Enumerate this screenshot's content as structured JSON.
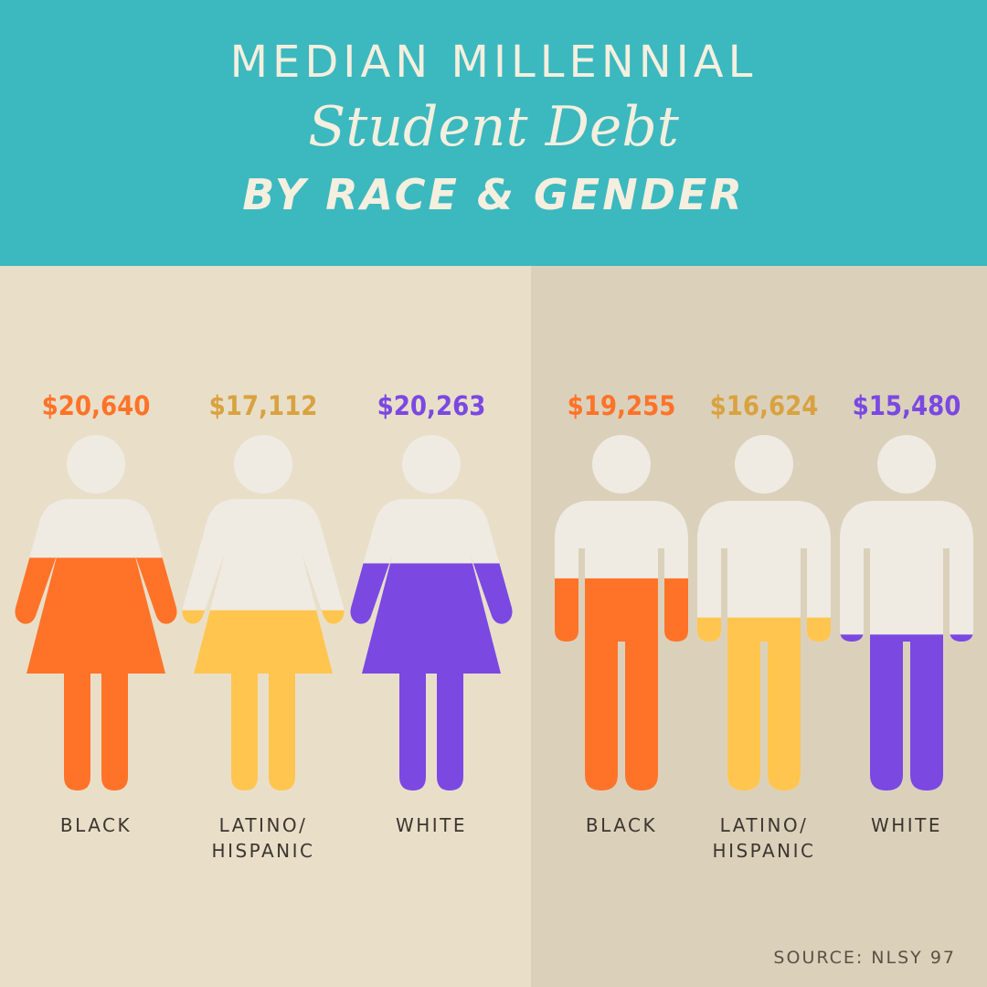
{
  "header": {
    "line1": "MEDIAN MILLENNIAL",
    "line2": "Student Debt",
    "line3": "BY RACE & GENDER"
  },
  "colors": {
    "header_bg": "#3cb8bf",
    "left_bg": "#e9dfc9",
    "right_bg": "#dbd1bb",
    "figure_empty": "#efebe3",
    "black": "#ff7329",
    "latino_hispanic": "#ffc54f",
    "white": "#7b48e2",
    "value_black": "#ff7329",
    "value_latino_hispanic": "#d9a241",
    "value_white": "#7b48e2",
    "label": "#3d362f"
  },
  "chart_data": {
    "type": "pictogram",
    "unit": "USD",
    "groups": [
      {
        "figure": "female",
        "items": [
          {
            "label": "BLACK",
            "value": 20640,
            "value_label": "$20,640",
            "color_key": "black"
          },
          {
            "label": "LATINO/\nHISPANIC",
            "value": 17112,
            "value_label": "$17,112",
            "color_key": "latino_hispanic"
          },
          {
            "label": "WHITE",
            "value": 20263,
            "value_label": "$20,263",
            "color_key": "white"
          }
        ]
      },
      {
        "figure": "male",
        "items": [
          {
            "label": "BLACK",
            "value": 19255,
            "value_label": "$19,255",
            "color_key": "black"
          },
          {
            "label": "LATINO/\nHISPANIC",
            "value": 16624,
            "value_label": "$16,624",
            "color_key": "latino_hispanic"
          },
          {
            "label": "WHITE",
            "value": 15480,
            "value_label": "$15,480",
            "color_key": "white"
          }
        ]
      }
    ]
  },
  "source": "SOURCE: NLSY 97"
}
